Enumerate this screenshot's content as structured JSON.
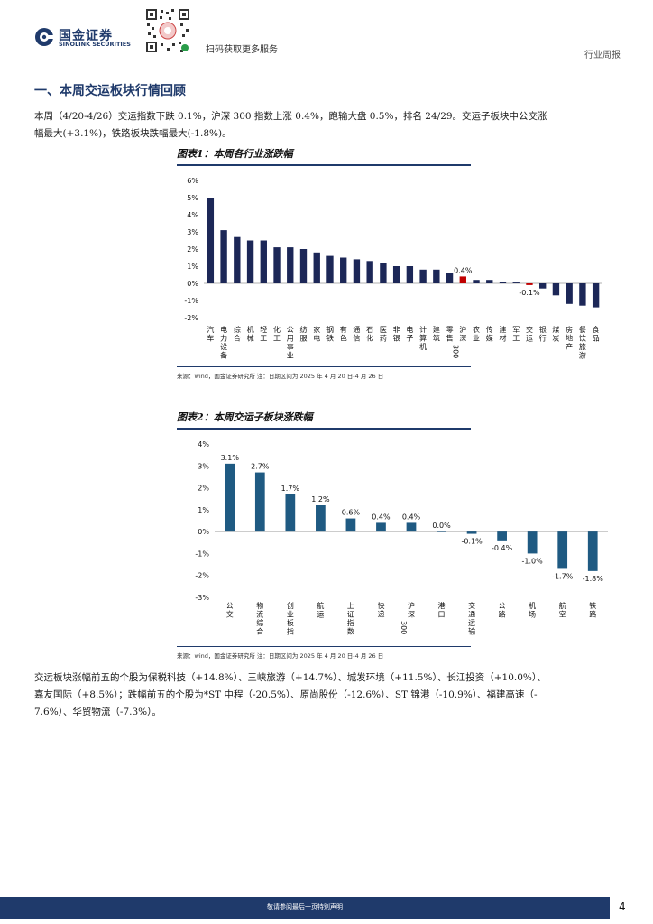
{
  "header": {
    "logo_cn": "国金证券",
    "logo_en": "SINOLINK SECURITIES",
    "qr_text": "扫码获取更多服务",
    "tag": "行业周报"
  },
  "section": {
    "title": "一、本周交运板块行情回顾"
  },
  "paragraph1": {
    "line1": "本周（4/20-4/26）交运指数下跌 0.1%，沪深 300 指数上涨 0.4%，跑输大盘 0.5%，排名 24/29。交运子板块中公交涨",
    "line2": "幅最大(+3.1%)，铁路板块跌幅最大(-1.8%)。"
  },
  "figure1": {
    "title": "图表1：本周各行业涨跌幅",
    "source": "来源：wind，国金证券研究所    注：日期区间为 2025 年 4 月 20 日-4 月 26 日"
  },
  "figure2": {
    "title": "图表2：本周交运子板块涨跌幅",
    "source": "来源：wind，国金证券研究所    注：日期区间为 2025 年 4 月 20 日-4 月 26 日"
  },
  "paragraph2": {
    "line1": "交运板块涨幅前五的个股为保税科技（+14.8%）、三峡旅游（+14.7%）、城发环境（+11.5%）、长江投资（+10.0%）、",
    "line2": "嘉友国际（+8.5%）；跌幅前五的个股为*ST 中程（-20.5%）、原尚股份（-12.6%）、ST 锦港（-10.9%）、福建高速（-",
    "line3": "7.6%）、华贸物流（-7.3%）。"
  },
  "footer": {
    "text": "敬请参阅最后一页特别声明",
    "page": "4"
  },
  "chart_data": [
    {
      "type": "bar",
      "title": "图表1：本周各行业涨跌幅",
      "categories": [
        "汽车",
        "电力设备",
        "综合",
        "机械",
        "轻工",
        "化工",
        "公用事业",
        "纺服",
        "家电",
        "钢铁",
        "有色",
        "通信",
        "石化",
        "医药",
        "非银",
        "电子",
        "计算机",
        "建筑",
        "零售",
        "沪深300",
        "农业",
        "传媒",
        "建材",
        "军工",
        "交运",
        "银行",
        "煤炭",
        "房地产",
        "餐饮旅游",
        "食品"
      ],
      "values": [
        5.0,
        3.1,
        2.7,
        2.5,
        2.5,
        2.1,
        2.1,
        2.0,
        1.8,
        1.6,
        1.5,
        1.4,
        1.3,
        1.2,
        1.0,
        1.0,
        0.8,
        0.8,
        0.6,
        0.4,
        0.2,
        0.2,
        0.1,
        0.05,
        -0.1,
        -0.3,
        -0.7,
        -1.2,
        -1.3,
        -1.4
      ],
      "data_labels": {
        "沪深300": "0.4%",
        "交运": "-0.1%"
      },
      "highlight": [
        "沪深300",
        "交运"
      ],
      "ylim": [
        -2,
        6
      ],
      "yticks": [
        "-2%",
        "-1%",
        "0%",
        "1%",
        "2%",
        "3%",
        "4%",
        "5%",
        "6%"
      ],
      "colors": {
        "default": "#1c2757",
        "highlight": "#c00000"
      }
    },
    {
      "type": "bar",
      "title": "图表2：本周交运子板块涨跌幅",
      "categories": [
        "公交",
        "物流综合",
        "创业板指",
        "航运",
        "上证指数",
        "快递",
        "沪深300",
        "港口",
        "交通运输",
        "公路",
        "机场",
        "航空",
        "铁路"
      ],
      "values": [
        3.1,
        2.7,
        1.7,
        1.2,
        0.6,
        0.4,
        0.4,
        0.0,
        -0.1,
        -0.4,
        -1.0,
        -1.7,
        -1.8
      ],
      "data_labels": [
        "3.1%",
        "2.7%",
        "1.7%",
        "1.2%",
        "0.6%",
        "0.4%",
        "0.4%",
        "0.0%",
        "-0.1%",
        "-0.4%",
        "-1.0%",
        "-1.7%",
        "-1.8%"
      ],
      "ylim": [
        -3,
        4
      ],
      "yticks": [
        "-3%",
        "-2%",
        "-1%",
        "0%",
        "1%",
        "2%",
        "3%",
        "4%"
      ],
      "colors": {
        "default": "#1f5a82"
      }
    }
  ]
}
